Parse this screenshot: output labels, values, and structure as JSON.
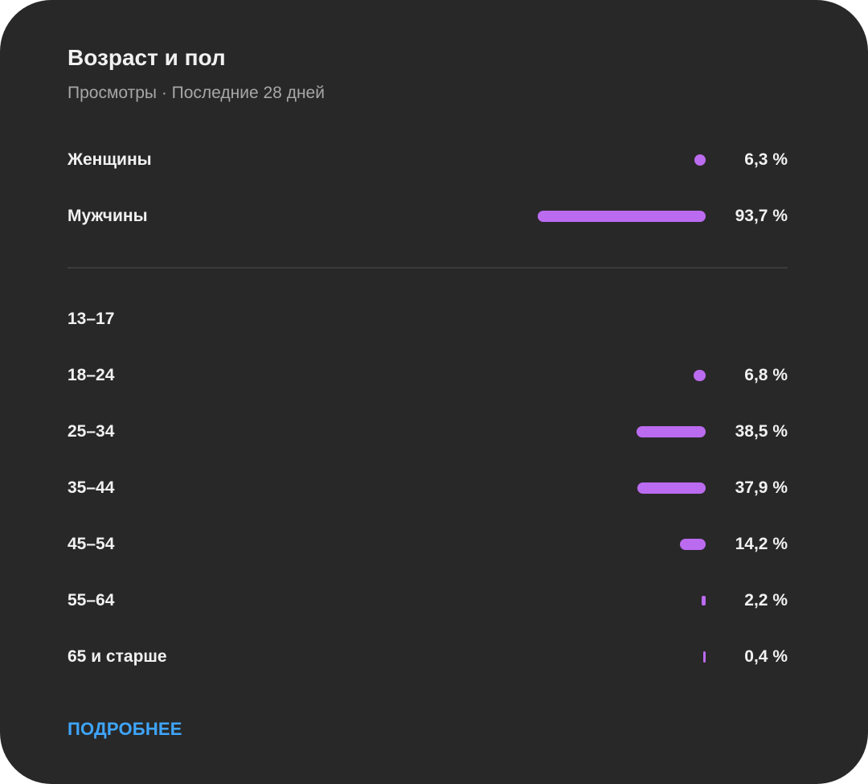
{
  "card": {
    "title": "Возраст и пол",
    "subtitle": "Просмотры · Последние 28 дней",
    "more_label": "ПОДРОБНЕЕ"
  },
  "colors": {
    "background": "#282828",
    "bar": "#bb6bf0",
    "link": "#3ea6ff",
    "text": "#f1f1f1",
    "subtext": "#a7a7a7"
  },
  "chart_data": [
    {
      "type": "bar",
      "categories": [
        "Женщины",
        "Мужчины"
      ],
      "values": [
        6.3,
        93.7
      ],
      "value_labels": [
        "6,3 %",
        "93,7 %"
      ]
    },
    {
      "type": "bar",
      "categories": [
        "13–17",
        "18–24",
        "25–34",
        "35–44",
        "45–54",
        "55–64",
        "65 и старше"
      ],
      "values": [
        0,
        6.8,
        38.5,
        37.9,
        14.2,
        2.2,
        0.4
      ],
      "value_labels": [
        "",
        "6,8 %",
        "38,5 %",
        "37,9 %",
        "14,2 %",
        "2,2 %",
        "0,4 %"
      ]
    }
  ]
}
